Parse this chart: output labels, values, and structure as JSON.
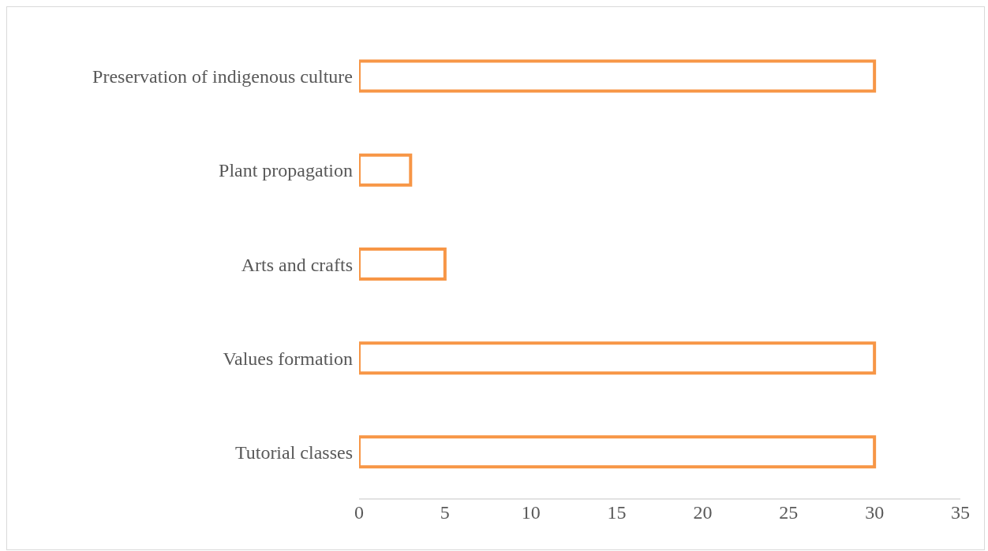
{
  "chart_data": {
    "type": "bar",
    "orientation": "horizontal",
    "categories": [
      "Preservation of indigenous culture",
      "Plant propagation",
      "Arts and crafts",
      "Values formation",
      "Tutorial classes"
    ],
    "values": [
      30,
      3,
      5,
      30,
      30
    ],
    "color": "#f79646",
    "xlim": [
      0,
      35
    ],
    "xticks": [
      0,
      5,
      10,
      15,
      20,
      25,
      30,
      35
    ],
    "grid": false,
    "legend": false
  }
}
